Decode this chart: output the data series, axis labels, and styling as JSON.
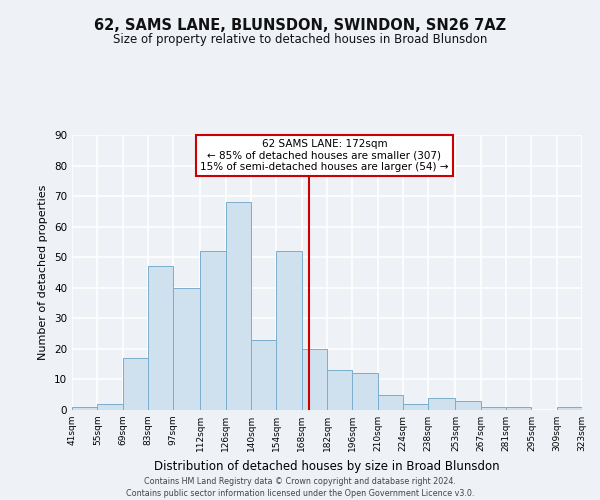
{
  "title": "62, SAMS LANE, BLUNSDON, SWINDON, SN26 7AZ",
  "subtitle": "Size of property relative to detached houses in Broad Blunsdon",
  "xlabel": "Distribution of detached houses by size in Broad Blunsdon",
  "ylabel": "Number of detached properties",
  "bar_color": "#cfe0ee",
  "bar_edge_color": "#7aaecc",
  "annotation_title": "62 SAMS LANE: 172sqm",
  "annotation_line1": "← 85% of detached houses are smaller (307)",
  "annotation_line2": "15% of semi-detached houses are larger (54) →",
  "vline_x": 172,
  "vline_color": "#cc0000",
  "bin_edges": [
    41,
    55,
    69,
    83,
    97,
    112,
    126,
    140,
    154,
    168,
    182,
    196,
    210,
    224,
    238,
    253,
    267,
    281,
    295,
    309,
    323
  ],
  "counts": [
    1,
    2,
    17,
    47,
    40,
    52,
    68,
    23,
    52,
    20,
    13,
    12,
    5,
    2,
    4,
    3,
    1,
    1,
    0,
    1
  ],
  "xlim": [
    41,
    323
  ],
  "ylim": [
    0,
    90
  ],
  "yticks": [
    0,
    10,
    20,
    30,
    40,
    50,
    60,
    70,
    80,
    90
  ],
  "xtick_labels": [
    "41sqm",
    "55sqm",
    "69sqm",
    "83sqm",
    "97sqm",
    "112sqm",
    "126sqm",
    "140sqm",
    "154sqm",
    "168sqm",
    "182sqm",
    "196sqm",
    "210sqm",
    "224sqm",
    "238sqm",
    "253sqm",
    "267sqm",
    "281sqm",
    "295sqm",
    "309sqm",
    "323sqm"
  ],
  "footer1": "Contains HM Land Registry data © Crown copyright and database right 2024.",
  "footer2": "Contains public sector information licensed under the Open Government Licence v3.0.",
  "background_color": "#eef2f7",
  "grid_color": "#ffffff",
  "annotation_box_color": "#ffffff",
  "annotation_box_edge": "#cc0000",
  "fig_width": 6.0,
  "fig_height": 5.0,
  "dpi": 100
}
